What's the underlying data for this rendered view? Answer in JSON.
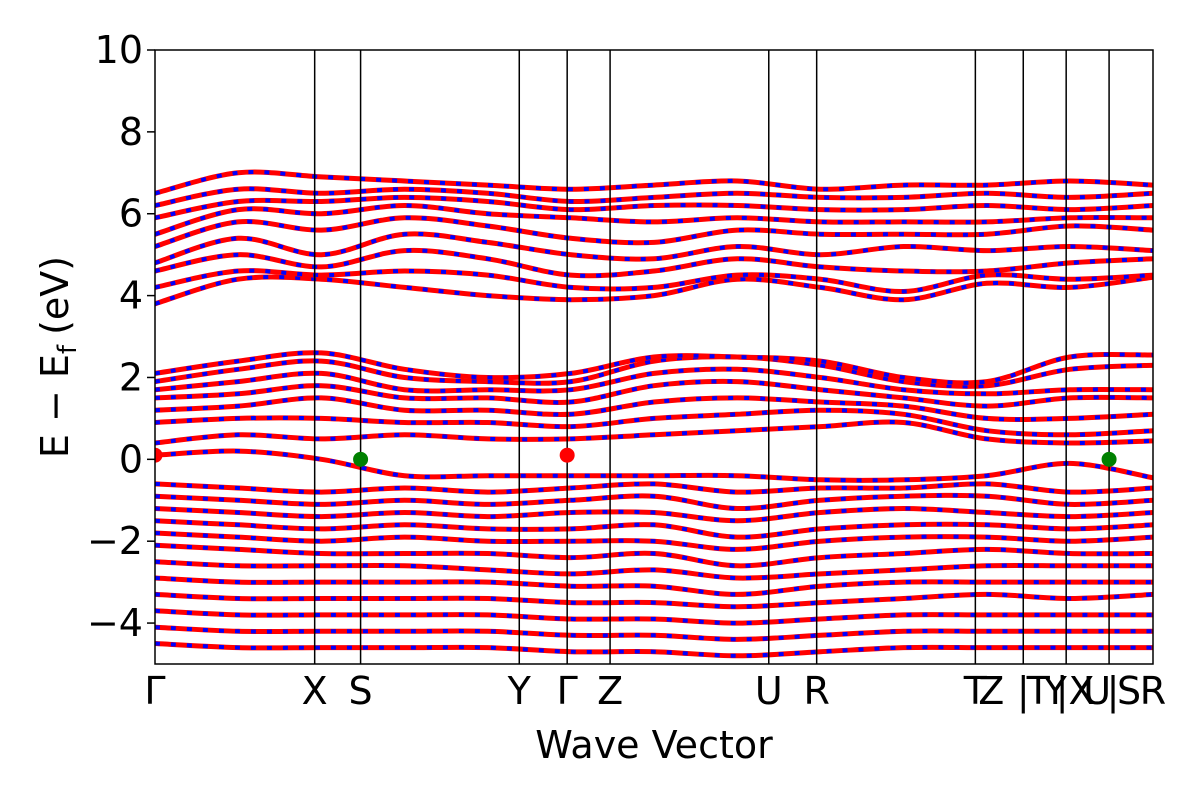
{
  "chart_data": {
    "type": "line",
    "title": "",
    "xlabel": "Wave Vector",
    "ylabel": "E − E",
    "ylabel_sub": "f",
    "ylabel_unit": "(eV)",
    "ylim": [
      -5,
      10
    ],
    "yticks": [
      {
        "value": -4,
        "label": "−4"
      },
      {
        "value": -2,
        "label": "−2"
      },
      {
        "value": 0,
        "label": "0"
      },
      {
        "value": 2,
        "label": "2"
      },
      {
        "value": 4,
        "label": "4"
      },
      {
        "value": 6,
        "label": "6"
      },
      {
        "value": 8,
        "label": "8"
      },
      {
        "value": 10,
        "label": "10"
      }
    ],
    "xlim": [
      0,
      1
    ],
    "kpoints": [
      {
        "label": "Γ",
        "x": 0.0
      },
      {
        "label": "X",
        "x": 0.16
      },
      {
        "label": "S",
        "x": 0.206
      },
      {
        "label": "Y",
        "x": 0.365
      },
      {
        "label": "Γ",
        "x": 0.413
      },
      {
        "label": "Z",
        "x": 0.456
      },
      {
        "label": "U",
        "x": 0.615
      },
      {
        "label": "R",
        "x": 0.663
      },
      {
        "label": "T",
        "x": 0.822
      },
      {
        "label": "Z",
        "x": 0.838
      },
      {
        "label": "|",
        "x": 0.87
      },
      {
        "label": "T",
        "x": 0.885
      },
      {
        "label": "Y",
        "x": 0.902
      },
      {
        "label": "|X",
        "x": 0.922
      },
      {
        "label": "U",
        "x": 0.944
      },
      {
        "label": "|",
        "x": 0.96
      },
      {
        "label": "S",
        "x": 0.976
      },
      {
        "label": "R",
        "x": 1.0
      }
    ],
    "vlines": [
      0.16,
      0.206,
      0.365,
      0.413,
      0.456,
      0.615,
      0.663,
      0.822,
      0.87,
      0.913,
      0.956
    ],
    "series_colors": {
      "primary": "#ff0000",
      "secondary": "#0000ff"
    },
    "markers": [
      {
        "x": 0.0,
        "y": 0.1,
        "color": "#ff0000"
      },
      {
        "x": 0.206,
        "y": 0.0,
        "color": "#008000"
      },
      {
        "x": 0.413,
        "y": 0.1,
        "color": "#ff0000"
      },
      {
        "x": 0.956,
        "y": 0.0,
        "color": "#008000"
      }
    ],
    "conduction_bands": [
      [
        3.8,
        4.4,
        4.4,
        4.2,
        4.0,
        3.9,
        4.0,
        4.4,
        4.2,
        3.9,
        4.3,
        4.2,
        4.45
      ],
      [
        4.2,
        4.6,
        4.5,
        4.6,
        4.5,
        4.2,
        4.2,
        4.5,
        4.4,
        4.1,
        4.5,
        4.4,
        4.5
      ],
      [
        4.6,
        5.0,
        4.7,
        5.1,
        4.9,
        4.5,
        4.6,
        4.9,
        4.7,
        4.6,
        4.6,
        4.8,
        4.9
      ],
      [
        4.8,
        5.4,
        5.0,
        5.5,
        5.3,
        5.0,
        4.9,
        5.2,
        5.0,
        5.2,
        5.1,
        5.2,
        5.1
      ],
      [
        5.2,
        5.8,
        5.6,
        5.9,
        5.7,
        5.4,
        5.3,
        5.6,
        5.5,
        5.5,
        5.5,
        5.7,
        5.6
      ],
      [
        5.5,
        6.1,
        6.0,
        6.2,
        6.0,
        5.9,
        5.8,
        5.9,
        5.8,
        5.8,
        5.8,
        5.9,
        5.9
      ],
      [
        5.9,
        6.3,
        6.3,
        6.4,
        6.3,
        6.1,
        6.2,
        6.2,
        6.1,
        6.1,
        6.2,
        6.1,
        6.2
      ],
      [
        6.2,
        6.6,
        6.5,
        6.6,
        6.5,
        6.3,
        6.4,
        6.5,
        6.4,
        6.4,
        6.5,
        6.4,
        6.5
      ],
      [
        6.5,
        7.0,
        6.9,
        6.8,
        6.7,
        6.6,
        6.7,
        6.8,
        6.6,
        6.7,
        6.7,
        6.8,
        6.7
      ]
    ],
    "valence_bands": [
      [
        0.1,
        0.2,
        0.0,
        -0.4,
        -0.4,
        -0.4,
        -0.4,
        -0.4,
        -0.5,
        -0.5,
        -0.4,
        -0.1,
        -0.45
      ],
      [
        -0.6,
        -0.7,
        -0.8,
        -0.7,
        -0.8,
        -0.7,
        -0.6,
        -0.8,
        -0.7,
        -0.7,
        -0.6,
        -0.8,
        -0.7
      ],
      [
        -0.9,
        -1.0,
        -1.1,
        -1.0,
        -1.1,
        -1.0,
        -0.9,
        -1.2,
        -1.0,
        -0.9,
        -0.9,
        -1.1,
        -1.0
      ],
      [
        -1.2,
        -1.3,
        -1.4,
        -1.3,
        -1.4,
        -1.3,
        -1.3,
        -1.5,
        -1.3,
        -1.2,
        -1.3,
        -1.4,
        -1.3
      ],
      [
        -1.5,
        -1.6,
        -1.7,
        -1.6,
        -1.7,
        -1.7,
        -1.6,
        -1.9,
        -1.7,
        -1.6,
        -1.6,
        -1.7,
        -1.6
      ],
      [
        -1.8,
        -1.9,
        -2.0,
        -1.9,
        -2.0,
        -2.0,
        -2.0,
        -2.2,
        -2.0,
        -1.9,
        -1.9,
        -2.0,
        -1.9
      ],
      [
        -2.1,
        -2.2,
        -2.3,
        -2.3,
        -2.3,
        -2.4,
        -2.3,
        -2.6,
        -2.4,
        -2.3,
        -2.2,
        -2.3,
        -2.3
      ],
      [
        -2.5,
        -2.6,
        -2.6,
        -2.6,
        -2.7,
        -2.8,
        -2.7,
        -2.9,
        -2.8,
        -2.7,
        -2.6,
        -2.6,
        -2.6
      ],
      [
        -2.9,
        -3.0,
        -3.0,
        -3.0,
        -3.0,
        -3.1,
        -3.1,
        -3.3,
        -3.1,
        -3.0,
        -3.0,
        -3.0,
        -3.0
      ],
      [
        -3.3,
        -3.4,
        -3.4,
        -3.4,
        -3.4,
        -3.5,
        -3.5,
        -3.6,
        -3.5,
        -3.4,
        -3.3,
        -3.4,
        -3.3
      ],
      [
        -3.7,
        -3.8,
        -3.8,
        -3.8,
        -3.8,
        -3.9,
        -3.9,
        -4.0,
        -3.9,
        -3.8,
        -3.8,
        -3.8,
        -3.8
      ],
      [
        -4.1,
        -4.2,
        -4.2,
        -4.2,
        -4.2,
        -4.3,
        -4.3,
        -4.4,
        -4.3,
        -4.2,
        -4.2,
        -4.2,
        -4.2
      ],
      [
        -4.5,
        -4.6,
        -4.6,
        -4.6,
        -4.6,
        -4.7,
        -4.7,
        -4.8,
        -4.7,
        -4.6,
        -4.6,
        -4.6,
        -4.6
      ]
    ],
    "valence_upper_bands": [
      [
        0.4,
        0.6,
        0.5,
        0.6,
        0.5,
        0.5,
        0.6,
        0.7,
        0.8,
        0.9,
        0.5,
        0.4,
        0.45
      ],
      [
        0.9,
        1.0,
        1.0,
        0.9,
        0.9,
        0.8,
        1.0,
        1.1,
        1.2,
        1.1,
        0.7,
        0.6,
        0.7
      ],
      [
        1.2,
        1.3,
        1.5,
        1.2,
        1.2,
        1.1,
        1.4,
        1.5,
        1.4,
        1.3,
        1.0,
        1.0,
        1.1
      ],
      [
        1.5,
        1.6,
        1.8,
        1.5,
        1.5,
        1.4,
        1.8,
        1.9,
        1.7,
        1.5,
        1.3,
        1.5,
        1.5
      ],
      [
        1.7,
        1.9,
        2.1,
        1.7,
        1.7,
        1.7,
        2.1,
        2.2,
        2.0,
        1.7,
        1.6,
        1.7,
        1.7
      ],
      [
        1.9,
        2.2,
        2.4,
        2.0,
        1.9,
        1.9,
        2.4,
        2.5,
        2.3,
        1.9,
        1.8,
        2.2,
        2.3
      ],
      [
        2.1,
        2.4,
        2.6,
        2.2,
        2.0,
        2.1,
        2.5,
        2.5,
        2.4,
        2.0,
        1.9,
        2.5,
        2.55
      ]
    ]
  }
}
